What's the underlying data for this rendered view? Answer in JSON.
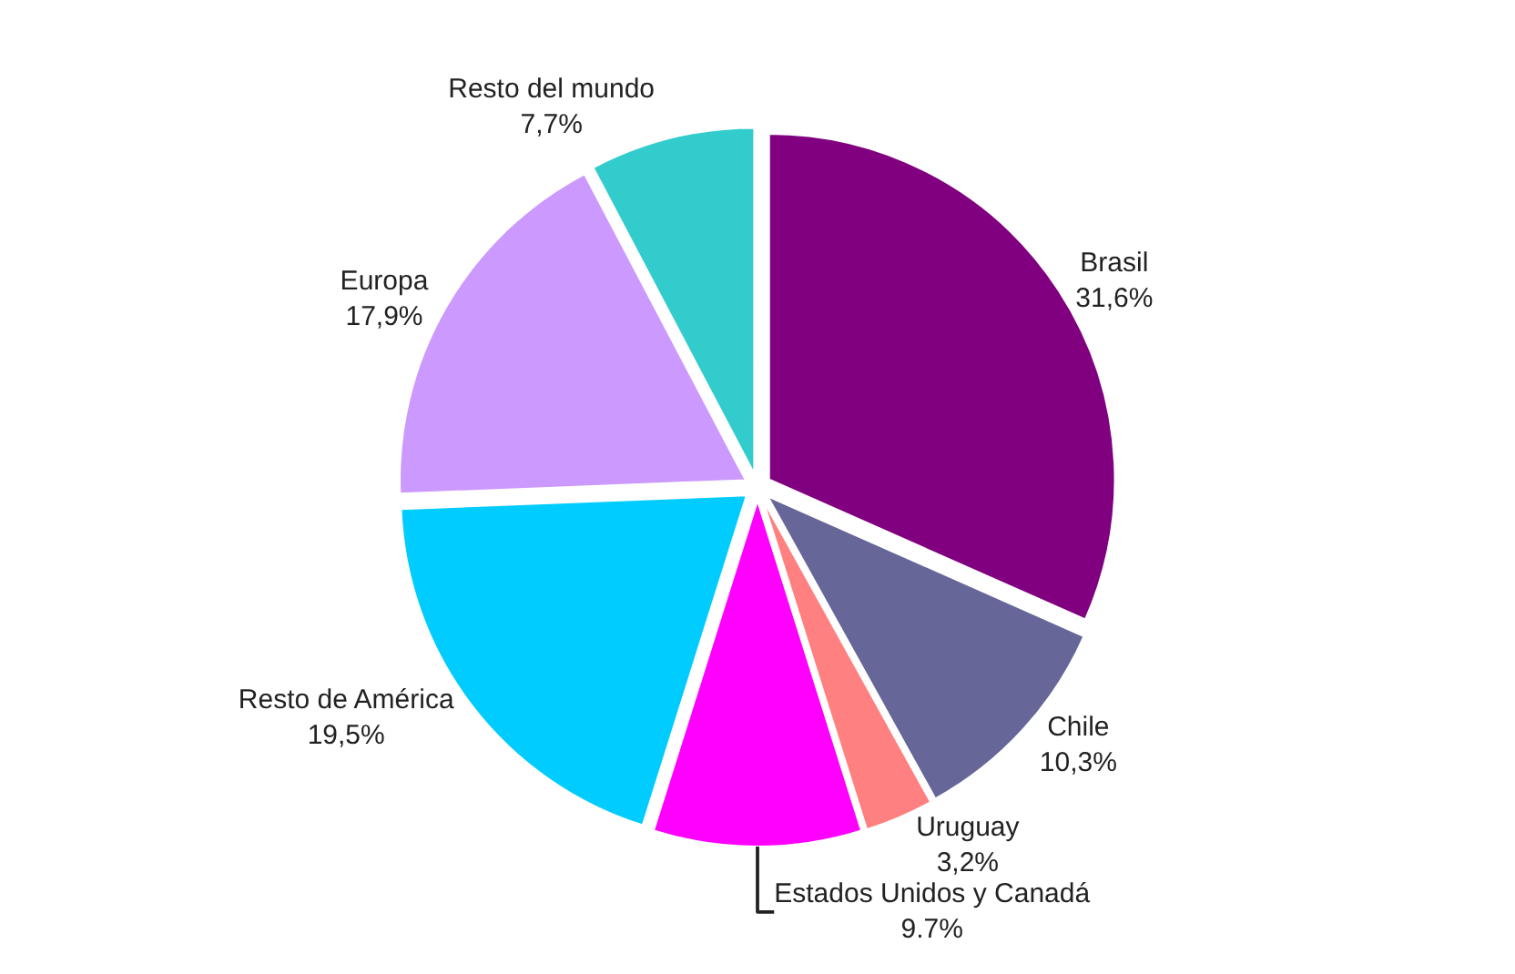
{
  "chart_data": {
    "type": "pie",
    "categories": [
      "Brasil",
      "Chile",
      "Uruguay",
      "Estados Unidos y Canadá",
      "Resto de América",
      "Europa",
      "Resto del mundo"
    ],
    "values": [
      31.6,
      10.3,
      3.2,
      9.7,
      19.5,
      17.9,
      7.7
    ],
    "value_labels": [
      "31,6%",
      "10,3%",
      "3,2%",
      "9.7%",
      "19,5%",
      "17,9%",
      "7,7%"
    ],
    "colors": [
      "#800080",
      "#666699",
      "#ff8080",
      "#ff00ff",
      "#00ccff",
      "#cc99ff",
      "#33cccc"
    ],
    "legend": false
  }
}
